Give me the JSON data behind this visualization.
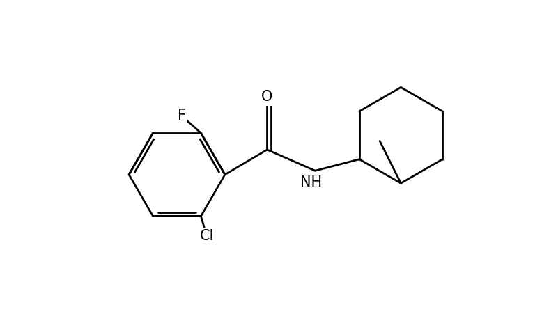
{
  "background_color": "#ffffff",
  "line_color": "#000000",
  "line_width": 2.0,
  "font_size": 15,
  "xlim": [
    0.0,
    10.0
  ],
  "ylim": [
    0.5,
    9.0
  ]
}
